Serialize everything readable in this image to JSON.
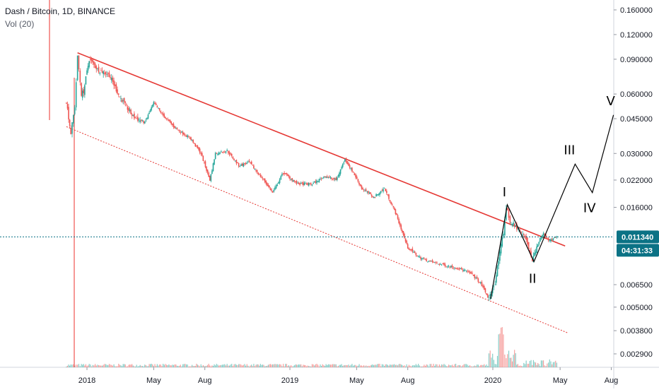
{
  "header": {
    "symbol_line": "Dash / Bitcoin, 1D, BINANCE",
    "volume_line": "Vol (20)"
  },
  "colors": {
    "up": "#26a69a",
    "down": "#ef5350",
    "trendline": "#e53935",
    "current_price_line": "#0b7285",
    "price_tag_bg": "#0b7285",
    "wave_line": "#000000",
    "background": "#ffffff"
  },
  "chart_data": {
    "type": "candlestick",
    "title": "Dash / Bitcoin, 1D, BINANCE",
    "y_scale": "log",
    "y_ticks": [
      "0.160000",
      "0.120000",
      "0.090000",
      "0.060000",
      "0.045000",
      "0.030000",
      "0.022000",
      "0.016000",
      "0.006500",
      "0.005000",
      "0.003800",
      "0.002900"
    ],
    "x_ticks": [
      "2018",
      "May",
      "Aug",
      "2019",
      "May",
      "Aug",
      "2020",
      "May",
      "Aug"
    ],
    "current_price": "0.011340",
    "countdown": "04:31:33",
    "indicator": "Vol (20)",
    "price_path": [
      [
        "2017-11-25",
        0.055
      ],
      [
        "2017-12-03",
        0.038
      ],
      [
        "2017-12-10",
        0.052
      ],
      [
        "2017-12-15",
        0.092
      ],
      [
        "2017-12-22",
        0.06
      ],
      [
        "2017-12-26",
        0.062
      ],
      [
        "2018-01-05",
        0.09
      ],
      [
        "2018-01-20",
        0.08
      ],
      [
        "2018-02-10",
        0.075
      ],
      [
        "2018-03-01",
        0.058
      ],
      [
        "2018-03-25",
        0.046
      ],
      [
        "2018-04-15",
        0.043
      ],
      [
        "2018-05-01",
        0.054
      ],
      [
        "2018-05-20",
        0.046
      ],
      [
        "2018-06-10",
        0.04
      ],
      [
        "2018-07-05",
        0.036
      ],
      [
        "2018-07-25",
        0.03
      ],
      [
        "2018-08-10",
        0.022
      ],
      [
        "2018-08-20",
        0.03
      ],
      [
        "2018-09-10",
        0.031
      ],
      [
        "2018-10-01",
        0.026
      ],
      [
        "2018-10-20",
        0.027
      ],
      [
        "2018-11-15",
        0.022
      ],
      [
        "2018-12-01",
        0.019
      ],
      [
        "2018-12-20",
        0.024
      ],
      [
        "2019-01-15",
        0.021
      ],
      [
        "2019-02-10",
        0.021
      ],
      [
        "2019-03-05",
        0.023
      ],
      [
        "2019-03-25",
        0.022
      ],
      [
        "2019-04-10",
        0.028
      ],
      [
        "2019-04-25",
        0.024
      ],
      [
        "2019-05-10",
        0.02
      ],
      [
        "2019-06-01",
        0.018
      ],
      [
        "2019-06-20",
        0.02
      ],
      [
        "2019-07-10",
        0.015
      ],
      [
        "2019-08-01",
        0.01
      ],
      [
        "2019-08-20",
        0.009
      ],
      [
        "2019-09-10",
        0.0085
      ],
      [
        "2019-10-01",
        0.0082
      ],
      [
        "2019-10-20",
        0.008
      ],
      [
        "2019-11-10",
        0.0077
      ],
      [
        "2019-11-25",
        0.0073
      ],
      [
        "2019-12-10",
        0.0066
      ],
      [
        "2019-12-25",
        0.0055
      ],
      [
        "2020-01-05",
        0.0067
      ],
      [
        "2020-01-20",
        0.012
      ],
      [
        "2020-01-25",
        0.016
      ],
      [
        "2020-02-01",
        0.0135
      ],
      [
        "2020-02-15",
        0.0125
      ],
      [
        "2020-03-01",
        0.011
      ],
      [
        "2020-03-12",
        0.0086
      ],
      [
        "2020-03-20",
        0.0102
      ],
      [
        "2020-04-01",
        0.012
      ],
      [
        "2020-04-10",
        0.0108
      ],
      [
        "2020-04-25",
        0.01134
      ]
    ],
    "trendlines": [
      {
        "name": "upper",
        "style": "solid",
        "from": [
          "2017-12-15",
          0.097
        ],
        "to": [
          "2020-05-10",
          0.0102
        ]
      },
      {
        "name": "lower",
        "style": "dotted",
        "from": [
          "2017-11-25",
          0.041
        ],
        "to": [
          "2020-05-15",
          0.0037
        ]
      }
    ],
    "wave_count": [
      {
        "label": "I",
        "point": [
          "2020-01-27",
          0.0165
        ]
      },
      {
        "label": "II",
        "point": [
          "2020-03-15",
          0.0085
        ]
      },
      {
        "label": "III",
        "point": [
          "2020-05-28",
          0.0265
        ]
      },
      {
        "label": "IV",
        "point": [
          "2020-06-28",
          0.019
        ]
      },
      {
        "label": "V",
        "point": [
          "2020-08-05",
          0.047
        ]
      }
    ]
  }
}
